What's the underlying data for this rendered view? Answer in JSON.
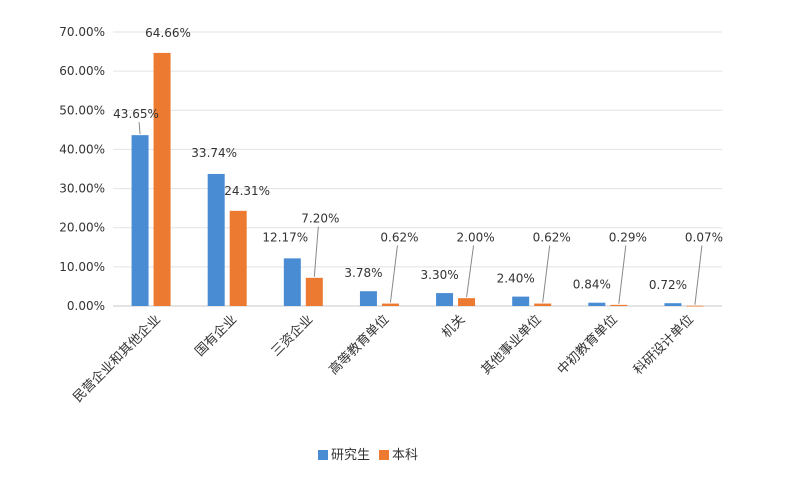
{
  "chart_data": {
    "type": "bar",
    "categories": [
      "民营企业和其他企业",
      "国有企业",
      "三资企业",
      "高等教育单位",
      "机关",
      "其他事业单位",
      "中初教育单位",
      "科研设计单位"
    ],
    "series": [
      {
        "name": "研究生",
        "color": "#4A8CD4",
        "values": [
          43.65,
          33.74,
          12.17,
          3.78,
          3.3,
          2.4,
          0.84,
          0.72
        ],
        "labels": [
          "43.65%",
          "33.74%",
          "12.17%",
          "3.78%",
          "3.30%",
          "2.40%",
          "0.84%",
          "0.72%"
        ]
      },
      {
        "name": "本科",
        "color": "#EC7A30",
        "values": [
          64.66,
          24.31,
          7.2,
          0.62,
          2.0,
          0.62,
          0.29,
          0.07
        ],
        "labels": [
          "64.66%",
          "24.31%",
          "7.20%",
          "0.62%",
          "2.00%",
          "0.62%",
          "0.29%",
          "0.07%"
        ]
      }
    ],
    "ylim": [
      0,
      70
    ],
    "yticks": [
      0,
      10,
      20,
      30,
      40,
      50,
      60,
      70
    ],
    "ytick_labels": [
      "0.00%",
      "10.00%",
      "20.00%",
      "30.00%",
      "40.00%",
      "50.00%",
      "60.00%",
      "70.00%"
    ],
    "grid": true,
    "legend_position": "bottom",
    "title": "",
    "xlabel": "",
    "ylabel": ""
  }
}
